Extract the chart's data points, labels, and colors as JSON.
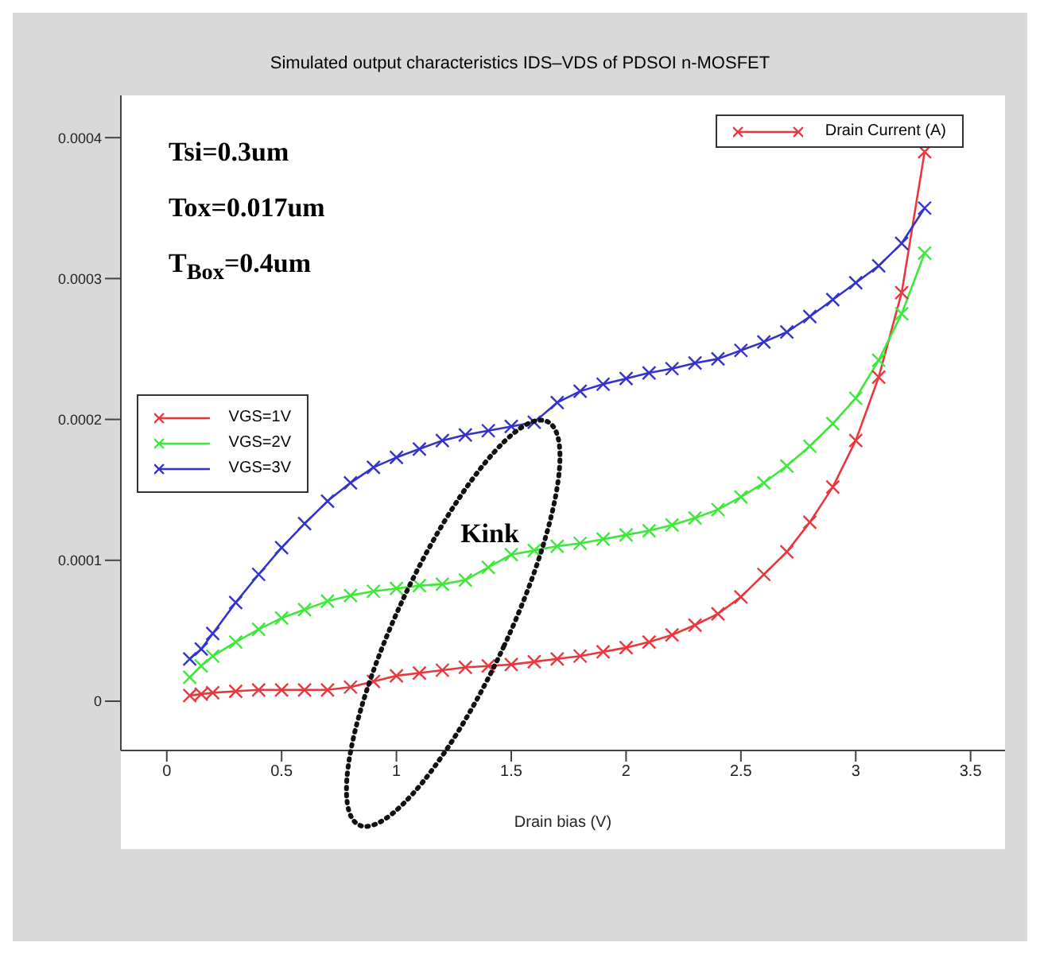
{
  "chart_data": {
    "type": "line",
    "title": "Simulated output characteristics IDS–VDS of PDSOI n-MOSFET",
    "xlabel": "Drain bias (V)",
    "ylabel": "Drain Current (A)",
    "xlim": [
      -0.2,
      3.65
    ],
    "ylim": [
      -3.5e-05,
      0.00043
    ],
    "xticks": [
      0,
      0.5,
      1,
      1.5,
      2,
      2.5,
      3,
      3.5
    ],
    "yticks": [
      0,
      0.0001,
      0.0002,
      0.0003,
      0.0004
    ],
    "grid": false,
    "legend": "left",
    "marker": "cross",
    "line_style": "solid",
    "annotations": [
      "Tsi=0.3um",
      "Tox=0.017um",
      "T$_{Box}$=0.4um",
      "Kink"
    ],
    "series": [
      {
        "name": "VGS=1V",
        "color": "#e8383d",
        "x": [
          0.1,
          0.15,
          0.2,
          0.3,
          0.4,
          0.5,
          0.6,
          0.7,
          0.8,
          0.9,
          1.0,
          1.1,
          1.2,
          1.3,
          1.4,
          1.5,
          1.6,
          1.7,
          1.8,
          1.9,
          2.0,
          2.1,
          2.2,
          2.3,
          2.4,
          2.5,
          2.6,
          2.7,
          2.8,
          2.9,
          3.0,
          3.1,
          3.2,
          3.3
        ],
        "values": [
          4e-06,
          5e-06,
          6e-06,
          7e-06,
          8e-06,
          8e-06,
          8e-06,
          8e-06,
          1e-05,
          1.4e-05,
          1.8e-05,
          2e-05,
          2.2e-05,
          2.4e-05,
          2.5e-05,
          2.6e-05,
          2.8e-05,
          3e-05,
          3.2e-05,
          3.5e-05,
          3.8e-05,
          4.2e-05,
          4.7e-05,
          5.4e-05,
          6.2e-05,
          7.4e-05,
          9e-05,
          0.000106,
          0.000127,
          0.000152,
          0.000185,
          0.00023,
          0.00029,
          0.00039
        ]
      },
      {
        "name": "VGS=2V",
        "color": "#3ee83a",
        "x": [
          0.1,
          0.15,
          0.2,
          0.3,
          0.4,
          0.5,
          0.6,
          0.7,
          0.8,
          0.9,
          1.0,
          1.1,
          1.2,
          1.3,
          1.4,
          1.5,
          1.6,
          1.7,
          1.8,
          1.9,
          2.0,
          2.1,
          2.2,
          2.3,
          2.4,
          2.5,
          2.6,
          2.7,
          2.8,
          2.9,
          3.0,
          3.1,
          3.2,
          3.3
        ],
        "values": [
          1.7e-05,
          2.5e-05,
          3.2e-05,
          4.2e-05,
          5.1e-05,
          5.9e-05,
          6.5e-05,
          7.1e-05,
          7.5e-05,
          7.8e-05,
          8e-05,
          8.2e-05,
          8.3e-05,
          8.6e-05,
          9.5e-05,
          0.000104,
          0.000107,
          0.00011,
          0.000112,
          0.000115,
          0.000118,
          0.000121,
          0.000125,
          0.00013,
          0.000136,
          0.000145,
          0.000155,
          0.000167,
          0.000181,
          0.000197,
          0.000215,
          0.000242,
          0.000275,
          0.000318
        ]
      },
      {
        "name": "VGS=3V",
        "color": "#3333cc",
        "x": [
          0.1,
          0.15,
          0.2,
          0.3,
          0.4,
          0.5,
          0.6,
          0.7,
          0.8,
          0.9,
          1.0,
          1.1,
          1.2,
          1.3,
          1.4,
          1.5,
          1.6,
          1.7,
          1.8,
          1.9,
          2.0,
          2.1,
          2.2,
          2.3,
          2.4,
          2.5,
          2.6,
          2.7,
          2.8,
          2.9,
          3.0,
          3.1,
          3.2,
          3.3
        ],
        "values": [
          3e-05,
          3.7e-05,
          4.8e-05,
          7e-05,
          9e-05,
          0.000109,
          0.000126,
          0.000142,
          0.000155,
          0.000166,
          0.000173,
          0.000179,
          0.000185,
          0.000189,
          0.000192,
          0.000195,
          0.000198,
          0.000212,
          0.00022,
          0.000225,
          0.000229,
          0.000233,
          0.000236,
          0.00024,
          0.000243,
          0.000249,
          0.000255,
          0.000262,
          0.000273,
          0.000285,
          0.000297,
          0.000309,
          0.000325,
          0.00035
        ]
      }
    ]
  }
}
